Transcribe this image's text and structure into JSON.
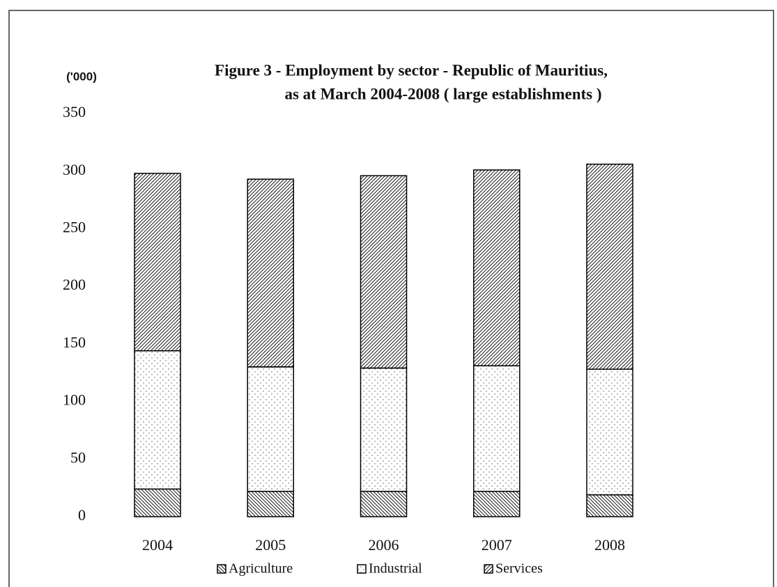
{
  "chart_data": {
    "type": "stacked_bar",
    "title": "Figure 3 - Employment by sector - Republic of Mauritius,",
    "subtitle": "as at March 2004-2008 ( large establishments )",
    "ylabel": "('000)",
    "categories": [
      "2004",
      "2005",
      "2006",
      "2007",
      "2008"
    ],
    "series": [
      {
        "name": "Agriculture",
        "color": "#000000",
        "hatch": "backslash",
        "values": [
          24,
          22,
          22,
          22,
          19
        ]
      },
      {
        "name": "Industrial",
        "color": "#000000",
        "hatch": "dots",
        "values": [
          120,
          108,
          107,
          109,
          109
        ]
      },
      {
        "name": "Services",
        "color": "#000000",
        "hatch": "slash",
        "values": [
          154,
          163,
          167,
          170,
          178
        ]
      }
    ],
    "ylim": [
      0,
      350
    ],
    "yticks": [
      0,
      50,
      100,
      150,
      200,
      250,
      300,
      350
    ],
    "grid": false,
    "legend": "bottom"
  }
}
